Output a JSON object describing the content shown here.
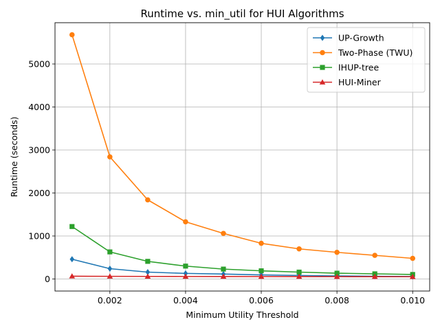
{
  "chart_data": {
    "type": "line",
    "title": "Runtime vs. min_util for HUI Algorithms",
    "xlabel": "Minimum Utility Threshold",
    "ylabel": "Runtime (seconds)",
    "x": [
      0.001,
      0.002,
      0.003,
      0.004,
      0.005,
      0.006,
      0.007,
      0.008,
      0.009,
      0.01
    ],
    "xlim": [
      0.00055,
      0.01045
    ],
    "ylim": [
      -280,
      5960
    ],
    "xticks": [
      0.002,
      0.004,
      0.006,
      0.008,
      0.01
    ],
    "xtick_labels": [
      "0.002",
      "0.004",
      "0.006",
      "0.008",
      "0.010"
    ],
    "yticks": [
      0,
      1000,
      2000,
      3000,
      4000,
      5000
    ],
    "ytick_labels": [
      "0",
      "1000",
      "2000",
      "3000",
      "4000",
      "5000"
    ],
    "grid": true,
    "legend_position": "top-right",
    "series": [
      {
        "name": "UP-Growth",
        "color": "#1f77b4",
        "marker": "diamond",
        "values": [
          460,
          240,
          160,
          130,
          115,
          95,
          82,
          72,
          64,
          57
        ]
      },
      {
        "name": "Two-Phase (TWU)",
        "color": "#ff7f0e",
        "marker": "circle",
        "values": [
          5680,
          2840,
          1840,
          1330,
          1060,
          830,
          700,
          620,
          550,
          480
        ]
      },
      {
        "name": "IHUP-tree",
        "color": "#2ca02c",
        "marker": "square",
        "values": [
          1220,
          630,
          410,
          300,
          230,
          190,
          160,
          135,
          120,
          105
        ]
      },
      {
        "name": "HUI-Miner",
        "color": "#d62728",
        "marker": "triangle",
        "values": [
          65,
          62,
          60,
          58,
          57,
          56,
          55,
          54,
          53,
          52
        ]
      }
    ]
  }
}
